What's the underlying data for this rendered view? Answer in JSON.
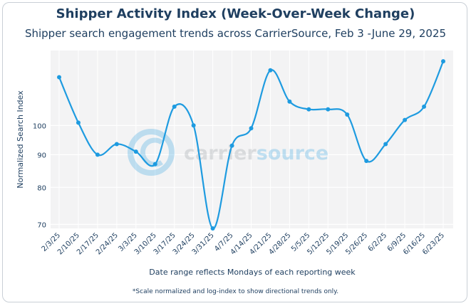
{
  "chart_data": {
    "type": "line",
    "title": "Shipper Activity Index (Week-Over-Week Change)",
    "subtitle": "Shipper search engagement trends across CarrierSource, Feb 3 -June 29, 2025",
    "xlabel": "Date range reflects Mondays of each reporting week",
    "ylabel": "Normalized Search Index",
    "footnote": "*Scale normalized and log-index to show directional trends only.",
    "y_scale": "log",
    "ylim": [
      69,
      131
    ],
    "y_ticks": [
      70,
      80,
      90,
      100
    ],
    "grid": true,
    "legend": "none",
    "line_color": "#1e9be0",
    "categories": [
      "2/3/25",
      "2/10/25",
      "2/17/25",
      "2/24/25",
      "3/3/25",
      "3/10/25",
      "3/17/25",
      "3/24/25",
      "3/31/25",
      "4/7/25",
      "4/14/25",
      "4/21/25",
      "4/28/25",
      "5/5/25",
      "5/12/25",
      "5/19/25",
      "5/26/25",
      "6/2/25",
      "6/9/25",
      "6/16/25",
      "6/23/25"
    ],
    "series": [
      {
        "values": [
          119,
          101,
          90,
          93.5,
          91,
          87,
          107,
          100,
          69,
          93,
          99,
          122,
          109,
          106,
          106,
          104,
          88,
          93.5,
          102,
          107,
          126
        ]
      }
    ]
  },
  "watermark": {
    "part1": "carrier",
    "part2": "source",
    "color1": "#8a9299",
    "color2": "#1e9be0"
  }
}
